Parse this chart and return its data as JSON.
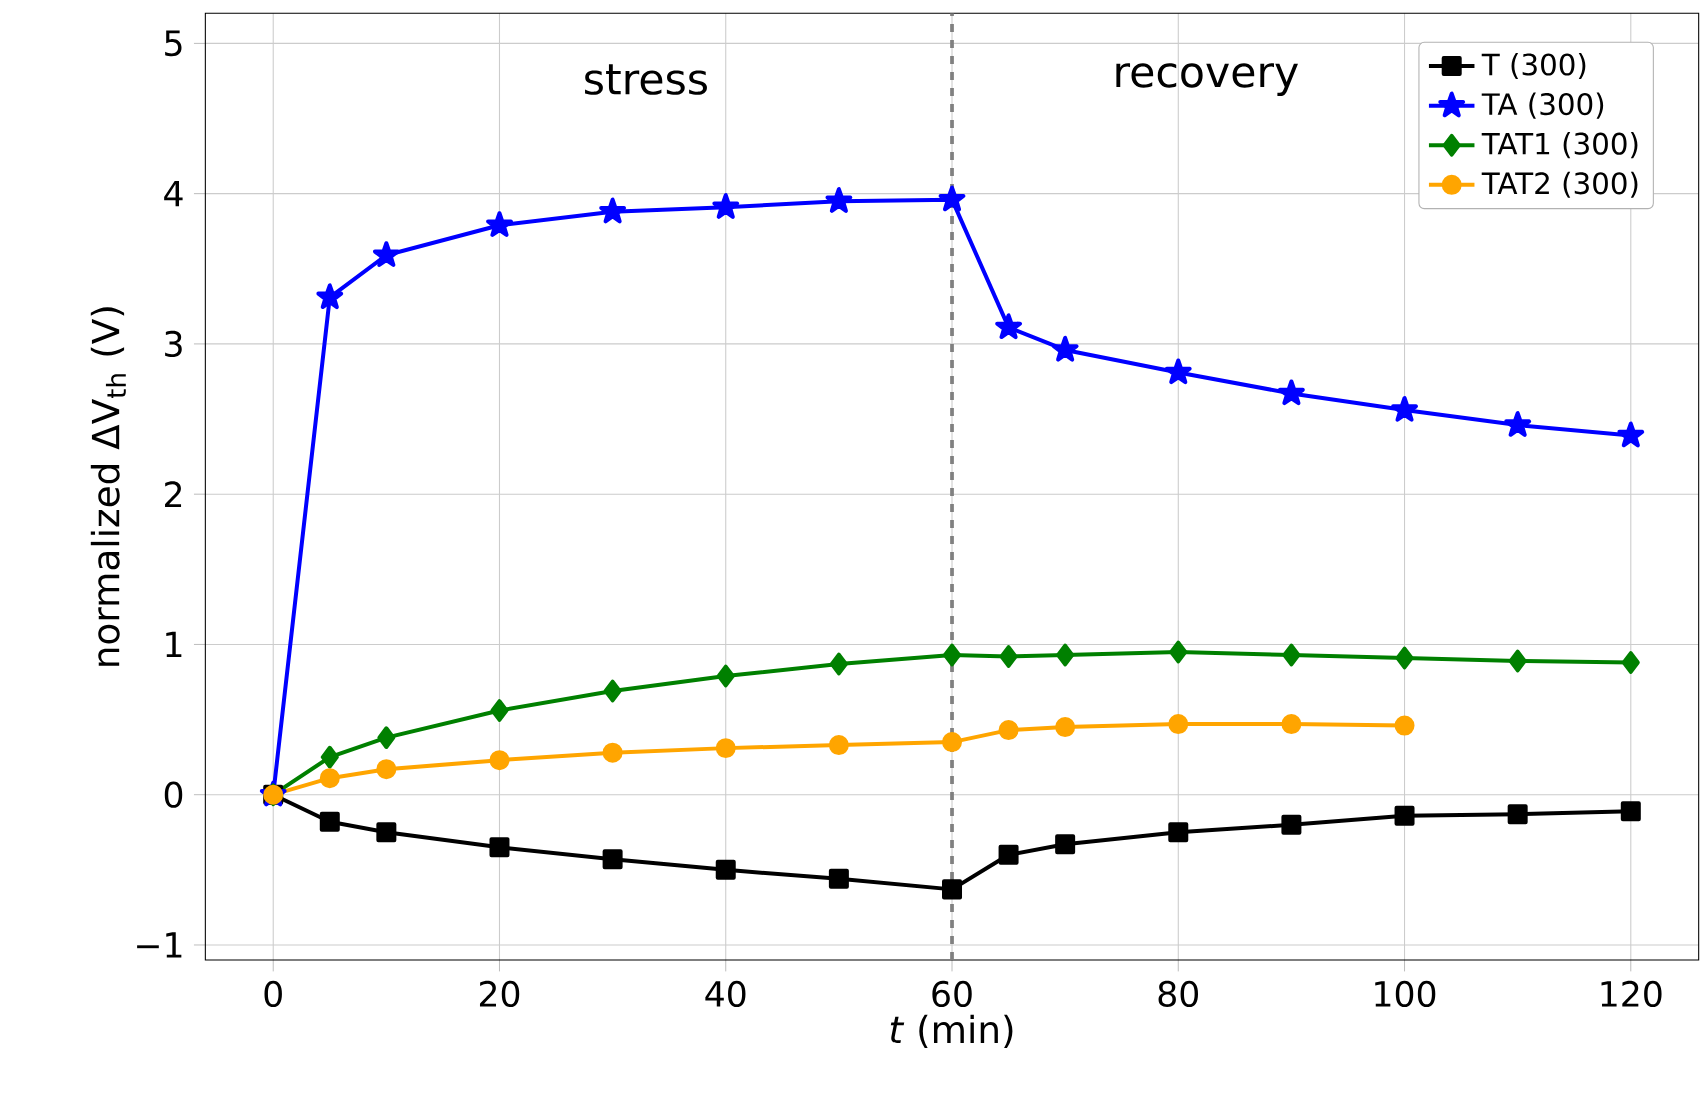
{
  "chart_data": {
    "type": "line",
    "xlabel": "*t* (min)",
    "ylabel": "normalized ΔV$_{th}$ (V)",
    "x": [
      0,
      5,
      10,
      20,
      30,
      40,
      50,
      60,
      65,
      70,
      80,
      90,
      100,
      110,
      120
    ],
    "series": [
      {
        "name": "T (300)",
        "color": "#000000",
        "marker": "square",
        "values": [
          0,
          -0.18,
          -0.25,
          -0.35,
          -0.43,
          -0.5,
          -0.56,
          -0.63,
          -0.4,
          -0.33,
          -0.25,
          -0.2,
          -0.14,
          -0.13,
          -0.11
        ]
      },
      {
        "name": "TA (300)",
        "color": "#0000ff",
        "marker": "star",
        "values": [
          0,
          3.31,
          3.59,
          3.79,
          3.88,
          3.91,
          3.95,
          3.96,
          3.11,
          2.96,
          2.81,
          2.67,
          2.56,
          2.46,
          2.39
        ]
      },
      {
        "name": "TAT1 (300)",
        "color": "#008000",
        "marker": "diamond",
        "values": [
          0,
          0.25,
          0.38,
          0.56,
          0.69,
          0.79,
          0.87,
          0.93,
          0.92,
          0.93,
          0.95,
          0.93,
          0.91,
          0.89,
          0.88
        ]
      },
      {
        "name": "TAT2 (300)",
        "color": "#ffa500",
        "marker": "circle",
        "values": [
          0,
          0.11,
          0.17,
          0.23,
          0.28,
          0.31,
          0.33,
          0.35,
          0.43,
          0.45,
          0.47,
          0.47,
          0.46,
          null,
          null
        ]
      }
    ],
    "xlim": [
      -6,
      126
    ],
    "ylim": [
      -1.1,
      5.2
    ],
    "xticks": [
      0,
      20,
      40,
      60,
      80,
      100,
      120
    ],
    "yticks": [
      {
        "value": -1,
        "label": "−1"
      },
      0,
      1,
      2,
      3,
      4,
      5
    ],
    "ref_lines": [
      {
        "axis": "x",
        "value": 60,
        "color": "#808080",
        "line_style": "dashed"
      }
    ],
    "annotations": [
      "stress",
      "recovery"
    ],
    "grid": true,
    "legend": "top right"
  }
}
